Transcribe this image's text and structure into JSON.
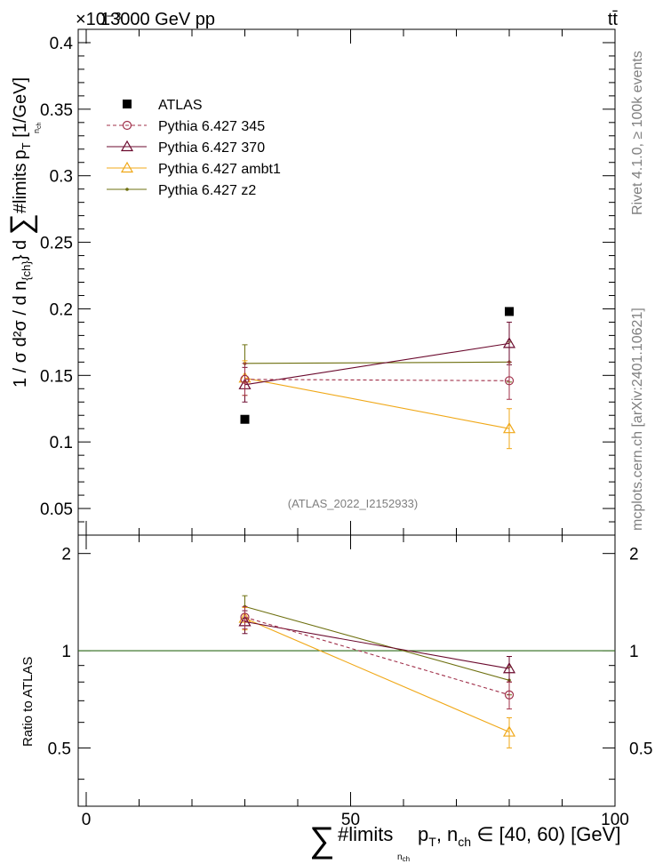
{
  "header": {
    "energy_label": "13000 GeV pp",
    "exponent_label": "×10⁻³",
    "process_label": "tt̄",
    "side_label_top": "Rivet 4.1.0, ≥ 100k events",
    "side_label_bottom": "mcplots.cern.ch [arXiv:2401.10621]",
    "analysis_label": "(ATLAS_2022_I2152933)"
  },
  "colors": {
    "atlas": "#000000",
    "p345": "#a0304a",
    "p370": "#6b0a2e",
    "ambt1": "#f0a818",
    "z2": "#6e7010",
    "ref_line": "#2e6b1a"
  },
  "chart_data": [
    {
      "type": "scatter",
      "panel": "main",
      "ylabel": "1 / σ d²σ / d n_{ch} d ∑#limits pT [1/GeV]",
      "ylabel_parts": {
        "main": "1 / σ d²σ / d n",
        "sub1": "{ch}",
        "mid": "} d ",
        "sum": "∑",
        "limits": "#limits",
        "sub2": "n",
        "sub2b": "ch",
        "end": "p",
        "end_sub": "T",
        "unit": " [1/GeV]"
      },
      "xlim": [
        0,
        100
      ],
      "ylim": [
        0.03,
        0.41
      ],
      "y_scale_factor": "×10⁻³",
      "yticks": [
        0.05,
        0.1,
        0.15,
        0.2,
        0.25,
        0.3,
        0.35,
        0.4
      ],
      "ytick_labels": [
        "0.05",
        "0.1",
        "0.15",
        "0.2",
        "0.25",
        "0.3",
        "0.35",
        "0.4"
      ],
      "legend": [
        "ATLAS",
        "Pythia 6.427 345",
        "Pythia 6.427 370",
        "Pythia 6.427 ambt1",
        "Pythia 6.427 z2"
      ],
      "series": [
        {
          "name": "ATLAS",
          "key": "atlas",
          "x": [
            30,
            80
          ],
          "y": [
            0.117,
            0.198
          ],
          "err": [
            0,
            0
          ]
        },
        {
          "name": "Pythia 6.427 345",
          "key": "p345",
          "x": [
            30,
            80
          ],
          "y": [
            0.147,
            0.146
          ],
          "err": [
            0.012,
            0.014
          ]
        },
        {
          "name": "Pythia 6.427 370",
          "key": "p370",
          "x": [
            30,
            80
          ],
          "y": [
            0.143,
            0.174
          ],
          "err": [
            0.013,
            0.016
          ]
        },
        {
          "name": "Pythia 6.427 ambt1",
          "key": "ambt1",
          "x": [
            30,
            80
          ],
          "y": [
            0.148,
            0.11
          ],
          "err": [
            0.013,
            0.015
          ]
        },
        {
          "name": "Pythia 6.427 z2",
          "key": "z2",
          "x": [
            30,
            80
          ],
          "y": [
            0.159,
            0.16
          ],
          "err": [
            0.014,
            0.015
          ]
        }
      ]
    },
    {
      "type": "line",
      "panel": "ratio",
      "ylabel": "Ratio to ATLAS",
      "xlabel": "∑#limits n_ch pT, n_ch ∈ [40, 60) [GeV]",
      "xlabel_parts": {
        "sum": "∑",
        "limits": "#limits",
        "sub1": "n",
        "sub1b": "ch",
        "p": "p",
        "p_sub": "T",
        "mid": ", n",
        "mid_sub": "ch",
        "end": " ∈ [40, 60) [GeV]"
      },
      "xlim": [
        0,
        100
      ],
      "ylim": [
        0.33,
        2.28
      ],
      "xticks": [
        0,
        50,
        100
      ],
      "xtick_labels": [
        "0",
        "50",
        "100"
      ],
      "yticks": [
        0.5,
        1,
        2
      ],
      "ytick_labels": [
        "0.5",
        "1",
        "2"
      ],
      "right_ytick_labels": [
        "0.5",
        "1",
        "2"
      ],
      "reference": 1.0,
      "series": [
        {
          "name": "Pythia 6.427 345",
          "key": "p345",
          "x": [
            30,
            80
          ],
          "y": [
            1.27,
            0.73
          ],
          "err": [
            0.1,
            0.07
          ]
        },
        {
          "name": "Pythia 6.427 370",
          "key": "p370",
          "x": [
            30,
            80
          ],
          "y": [
            1.23,
            0.88
          ],
          "err": [
            0.1,
            0.08
          ]
        },
        {
          "name": "Pythia 6.427 ambt1",
          "key": "ambt1",
          "x": [
            30,
            80
          ],
          "y": [
            1.26,
            0.56
          ],
          "err": [
            0.1,
            0.06
          ]
        },
        {
          "name": "Pythia 6.427 z2",
          "key": "z2",
          "x": [
            30,
            80
          ],
          "y": [
            1.37,
            0.81
          ],
          "err": [
            0.11,
            0.08
          ]
        }
      ]
    }
  ]
}
